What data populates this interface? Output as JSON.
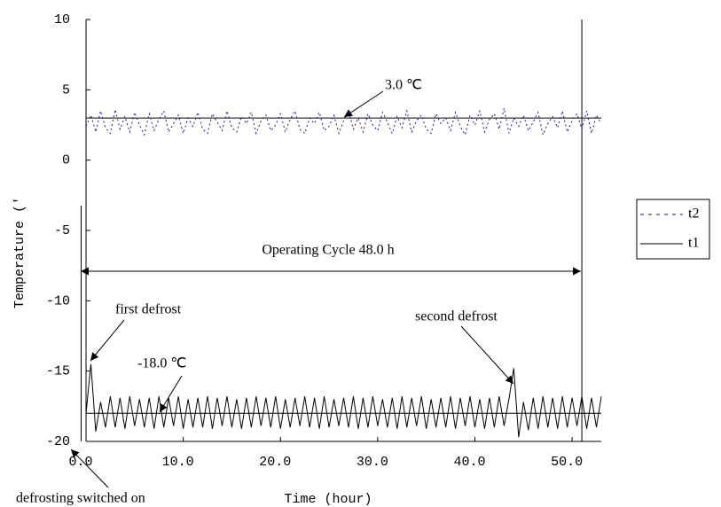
{
  "chart_data": {
    "type": "line",
    "x_label": "Time (hour)",
    "y_label": "Temperature ('",
    "xlim": [
      0,
      53
    ],
    "ylim": [
      -20,
      10
    ],
    "xticks": [
      {
        "value": 0,
        "label": "0.0"
      },
      {
        "value": 10,
        "label": "10.0"
      },
      {
        "value": 20,
        "label": "20.0"
      },
      {
        "value": 30,
        "label": "30.0"
      },
      {
        "value": 40,
        "label": "40.0"
      },
      {
        "value": 50,
        "label": "50.0"
      }
    ],
    "yticks": [
      -20,
      -15,
      -10,
      -5,
      0,
      5,
      10
    ],
    "hlines": [
      3,
      -18
    ],
    "vlines": [
      -0.5,
      51
    ],
    "annotations": [
      "3.0 ℃",
      "Operating Cycle 48.0 h",
      "first defrost",
      "-18.0 ℃",
      "second defrost",
      "defrosting switched on"
    ],
    "legend": "right",
    "x": [
      0,
      0.5,
      1,
      1.5,
      2,
      2.5,
      3,
      3.5,
      4,
      4.5,
      5,
      5.5,
      6,
      6.5,
      7,
      7.5,
      8,
      8.5,
      9,
      9.5,
      10,
      10.5,
      11,
      11.5,
      12,
      12.5,
      13,
      13.5,
      14,
      14.5,
      15,
      15.5,
      16,
      16.5,
      17,
      17.5,
      18,
      18.5,
      19,
      19.5,
      20,
      20.5,
      21,
      21.5,
      22,
      22.5,
      23,
      23.5,
      24,
      24.5,
      25,
      25.5,
      26,
      26.5,
      27,
      27.5,
      28,
      28.5,
      29,
      29.5,
      30,
      30.5,
      31,
      31.5,
      32,
      32.5,
      33,
      33.5,
      34,
      34.5,
      35,
      35.5,
      36,
      36.5,
      37,
      37.5,
      38,
      38.5,
      39,
      39.5,
      40,
      40.5,
      41,
      41.5,
      42,
      42.5,
      43,
      43.5,
      44,
      44.5,
      45,
      45.5,
      46,
      46.5,
      47,
      47.5,
      48,
      48.5,
      49,
      49.5,
      50,
      50.5,
      51,
      51.5,
      52,
      52.5,
      53
    ],
    "series": [
      {
        "name": "t2",
        "color": "#1a1a8c",
        "dash": true,
        "values": [
          2.4,
          3.2,
          2.0,
          3.5,
          2.3,
          1.9,
          3.6,
          2.2,
          3.1,
          2.0,
          3.4,
          2.5,
          1.8,
          3.3,
          2.1,
          2.9,
          3.5,
          2.0,
          2.6,
          3.2,
          1.9,
          3.0,
          2.4,
          3.4,
          2.2,
          1.9,
          3.3,
          2.7,
          2.1,
          3.5,
          2.3,
          2.0,
          3.1,
          2.6,
          3.4,
          1.9,
          2.8,
          3.2,
          2.1,
          2.5,
          3.3,
          2.0,
          2.9,
          3.5,
          2.2,
          1.9,
          3.0,
          2.6,
          3.4,
          2.1,
          2.4,
          3.2,
          1.9,
          2.8,
          3.5,
          2.2,
          3.0,
          2.0,
          3.3,
          2.5,
          2.1,
          3.4,
          2.7,
          1.9,
          3.1,
          2.3,
          3.5,
          2.0,
          2.8,
          3.2,
          2.2,
          1.9,
          3.3,
          2.6,
          3.0,
          2.1,
          3.4,
          2.4,
          1.8,
          3.2,
          2.5,
          3.5,
          2.0,
          2.9,
          3.3,
          2.2,
          3.7,
          1.9,
          3.0,
          2.4,
          3.2,
          2.1,
          2.7,
          3.4,
          1.8,
          2.6,
          3.1,
          2.3,
          3.5,
          2.0,
          2.8,
          3.3,
          2.2,
          3.5,
          1.9,
          3.2,
          2.6
        ]
      },
      {
        "name": "t1",
        "color": "#000000",
        "dash": false,
        "values": [
          -18.0,
          -14.5,
          -19.3,
          -17.2,
          -19.0,
          -16.8,
          -19.0,
          -16.9,
          -19.1,
          -16.8,
          -18.9,
          -17.0,
          -19.0,
          -16.9,
          -19.1,
          -16.8,
          -19.0,
          -16.9,
          -18.9,
          -16.8,
          -19.1,
          -17.0,
          -19.0,
          -16.9,
          -19.0,
          -16.8,
          -19.1,
          -16.9,
          -18.9,
          -16.8,
          -19.0,
          -17.0,
          -19.1,
          -16.9,
          -19.0,
          -16.8,
          -18.9,
          -16.9,
          -19.0,
          -16.8,
          -19.1,
          -17.0,
          -19.0,
          -16.9,
          -18.9,
          -16.8,
          -19.0,
          -16.9,
          -19.1,
          -16.8,
          -19.0,
          -17.0,
          -18.9,
          -16.9,
          -19.0,
          -16.8,
          -19.1,
          -16.9,
          -19.0,
          -16.8,
          -18.9,
          -17.0,
          -19.0,
          -16.9,
          -19.1,
          -16.8,
          -19.0,
          -16.9,
          -18.9,
          -16.8,
          -19.1,
          -17.0,
          -19.0,
          -16.9,
          -19.0,
          -16.8,
          -19.1,
          -16.9,
          -18.9,
          -16.8,
          -19.0,
          -17.0,
          -19.1,
          -16.9,
          -19.0,
          -16.8,
          -18.9,
          -17.0,
          -14.8,
          -19.7,
          -17.2,
          -19.2,
          -16.9,
          -19.1,
          -16.8,
          -19.0,
          -16.9,
          -19.1,
          -16.8,
          -19.0,
          -16.9,
          -18.9,
          -16.8,
          -19.1,
          -16.9,
          -19.0,
          -16.8
        ]
      }
    ]
  }
}
